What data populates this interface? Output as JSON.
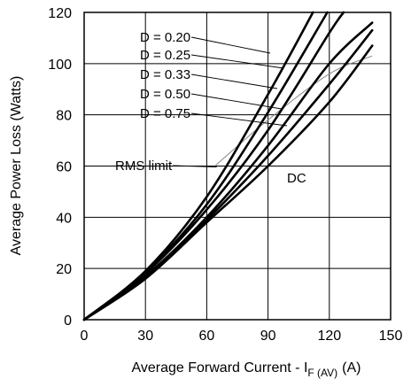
{
  "chart_data": {
    "type": "line",
    "xlabel": "Average Forward Current - I",
    "xlabel_subscript": "F (AV)",
    "xlabel_unit": "(A)",
    "ylabel": "Average Power Loss (Watts)",
    "xlim": [
      0,
      150
    ],
    "ylim": [
      0,
      120
    ],
    "x_ticks": [
      "0",
      "30",
      "60",
      "90",
      "120",
      "150"
    ],
    "y_ticks": [
      "0",
      "20",
      "40",
      "60",
      "80",
      "100",
      "120"
    ],
    "grid": true,
    "series": [
      {
        "name": "D = 0.20",
        "x": [
          0,
          30,
          60,
          90,
          112
        ],
        "y": [
          0,
          19,
          48,
          88,
          120
        ]
      },
      {
        "name": "D = 0.25",
        "x": [
          0,
          30,
          60,
          90,
          119
        ],
        "y": [
          0,
          18.5,
          45,
          81,
          120
        ]
      },
      {
        "name": "D = 0.33",
        "x": [
          0,
          30,
          60,
          90,
          120,
          127
        ],
        "y": [
          0,
          18,
          43,
          74,
          112,
          120
        ]
      },
      {
        "name": "D = 0.50",
        "x": [
          0,
          30,
          60,
          90,
          120,
          141
        ],
        "y": [
          0,
          17,
          40,
          68,
          100,
          116
        ]
      },
      {
        "name": "DC",
        "x": [
          0,
          30,
          60,
          90,
          120,
          141
        ],
        "y": [
          0,
          16,
          38,
          60,
          85,
          107
        ]
      },
      {
        "name": "D = 0.75",
        "x": [
          0,
          30,
          60,
          90,
          120,
          141
        ],
        "y": [
          0,
          16.5,
          39,
          64,
          92,
          113
        ]
      }
    ],
    "rms_limit": {
      "label": "RMS limit",
      "x": [
        64,
        90,
        120,
        141
      ],
      "y": [
        60,
        78,
        96,
        103
      ]
    },
    "annotations": {
      "dc": "DC"
    }
  }
}
